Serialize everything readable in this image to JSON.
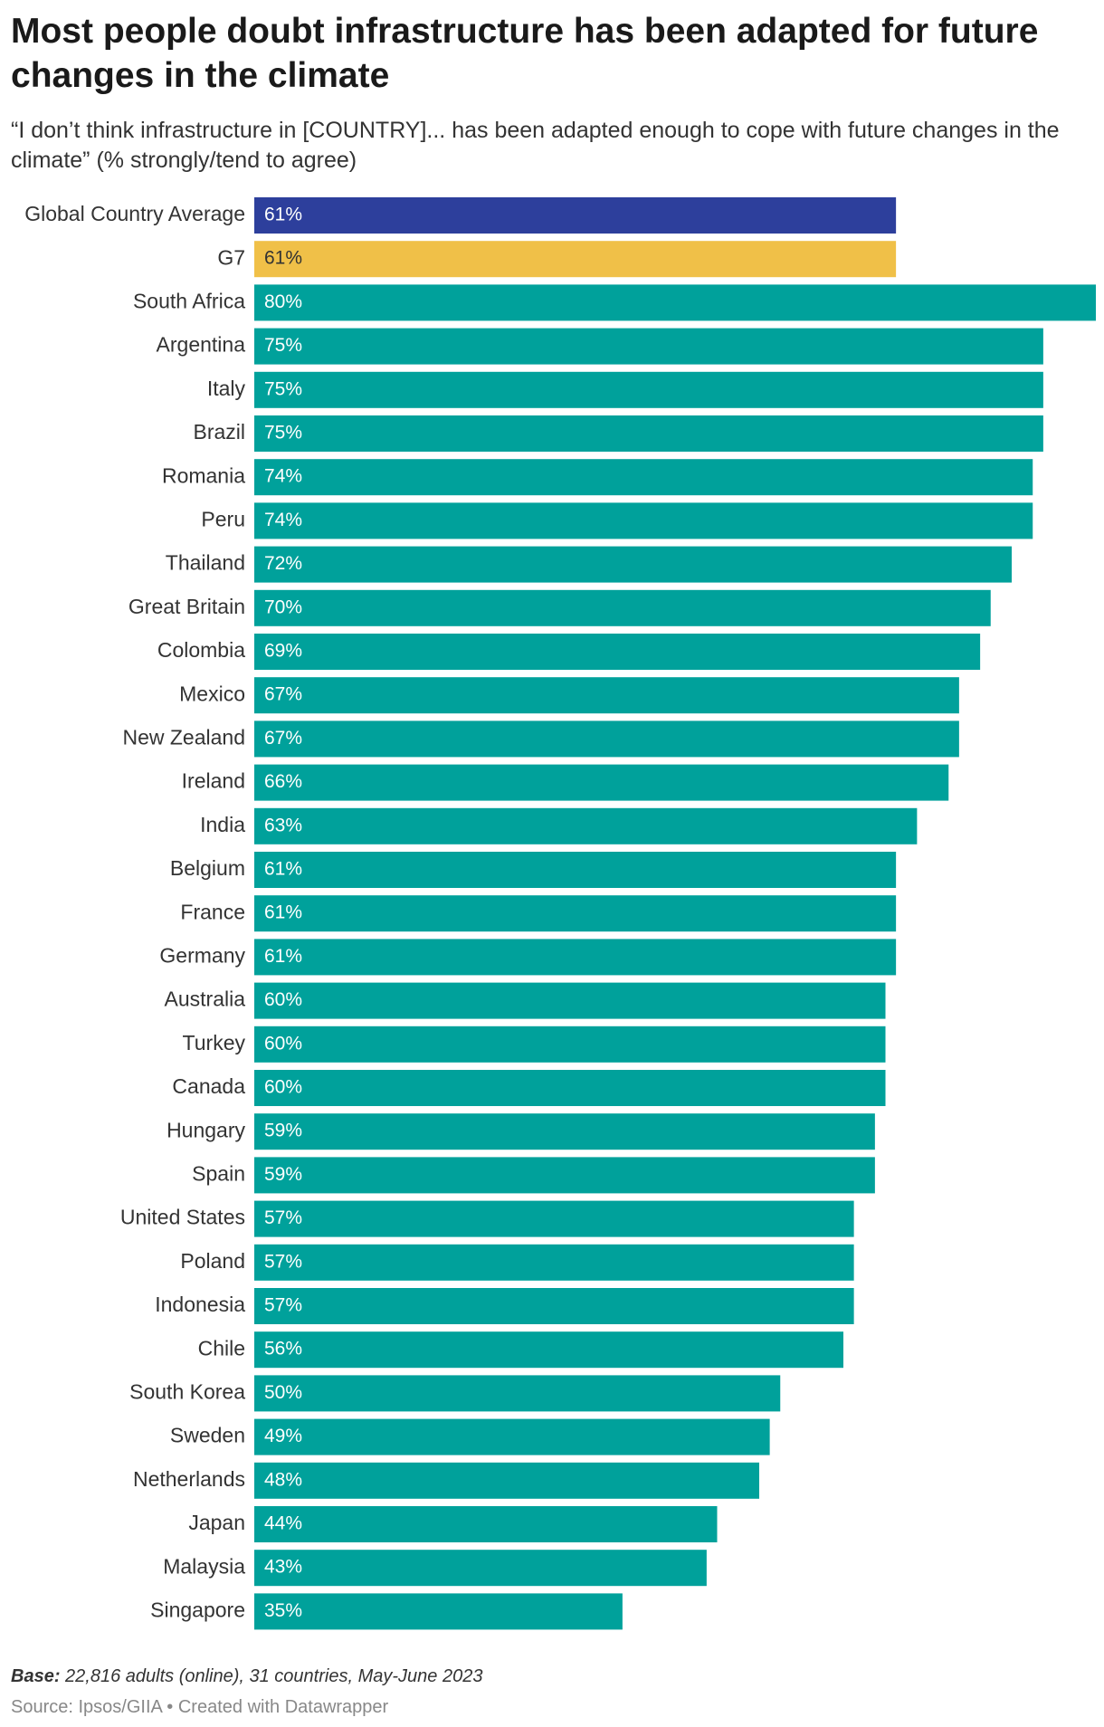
{
  "header": {
    "title": "Most people doubt infrastructure has been adapted for future changes in the climate",
    "subtitle": "“I don’t think infrastructure in [COUNTRY]... has been adapted enough to cope with future changes in the climate” (% strongly/tend to agree)"
  },
  "chart_data": {
    "type": "bar",
    "orientation": "horizontal",
    "value_suffix": "%",
    "xlim": [
      0,
      80
    ],
    "grid": false,
    "categories": [
      "Global Country Average",
      "G7",
      "South Africa",
      "Argentina",
      "Italy",
      "Brazil",
      "Romania",
      "Peru",
      "Thailand",
      "Great Britain",
      "Colombia",
      "Mexico",
      "New Zealand",
      "Ireland",
      "India",
      "Belgium",
      "France",
      "Germany",
      "Australia",
      "Turkey",
      "Canada",
      "Hungary",
      "Spain",
      "United States",
      "Poland",
      "Indonesia",
      "Chile",
      "South Korea",
      "Sweden",
      "Netherlands",
      "Japan",
      "Malaysia",
      "Singapore"
    ],
    "values": [
      61,
      61,
      80,
      75,
      75,
      75,
      74,
      74,
      72,
      70,
      69,
      67,
      67,
      66,
      63,
      61,
      61,
      61,
      60,
      60,
      60,
      59,
      59,
      57,
      57,
      57,
      56,
      50,
      49,
      48,
      44,
      43,
      35
    ],
    "labels": [
      "61%",
      "61%",
      "80%",
      "75%",
      "75%",
      "75%",
      "74%",
      "74%",
      "72%",
      "70%",
      "69%",
      "67%",
      "67%",
      "66%",
      "63%",
      "61%",
      "61%",
      "61%",
      "60%",
      "60%",
      "60%",
      "59%",
      "59%",
      "57%",
      "57%",
      "57%",
      "56%",
      "50%",
      "49%",
      "48%",
      "44%",
      "43%",
      "35%"
    ],
    "colors": {
      "Global Country Average": "#2d3f9c",
      "G7": "#f0c048",
      "default": "#00a19b"
    },
    "label_colors": {
      "G7": "#333333",
      "default": "#ffffff"
    }
  },
  "footer": {
    "base_label": "Base:",
    "base_text": " 22,816 adults (online), 31 countries, May-June 2023",
    "source": "Source: Ipsos/GIIA • Created with Datawrapper"
  }
}
